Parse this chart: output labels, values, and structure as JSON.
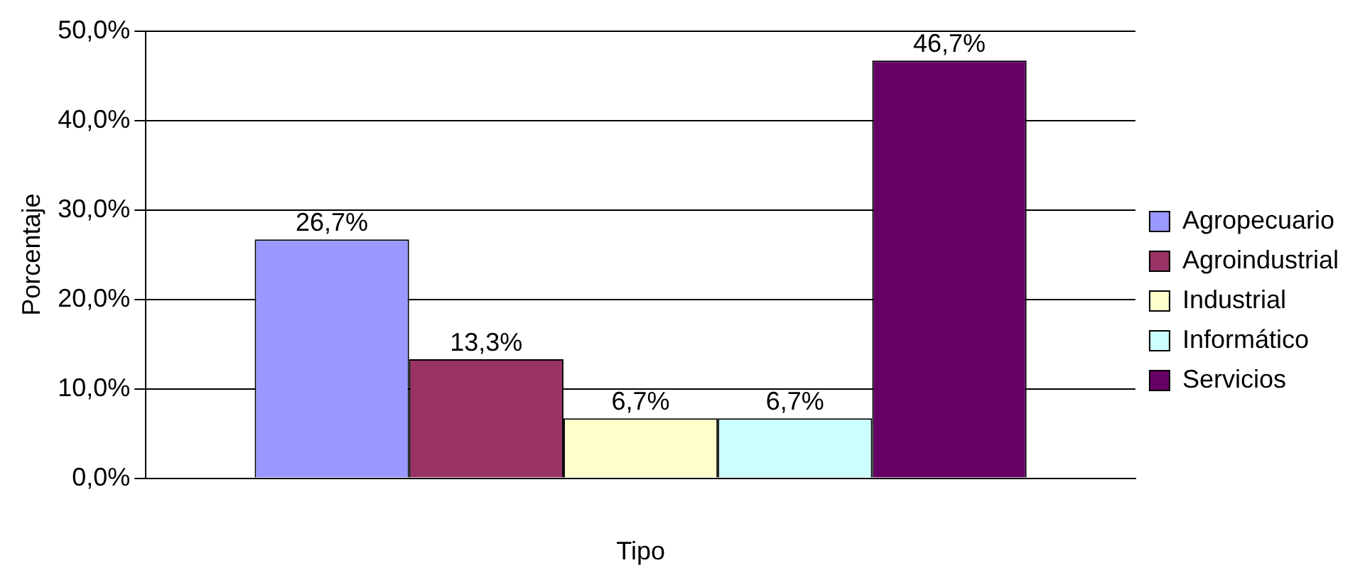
{
  "chart_data": {
    "type": "bar",
    "xlabel": "Tipo",
    "ylabel": "Porcentaje",
    "categories": [
      null
    ],
    "series": [
      {
        "name": "Agropecuario",
        "color": "#9999ff",
        "values": [
          26.7
        ],
        "value_labels": [
          "26,7%"
        ]
      },
      {
        "name": "Agroindustrial",
        "color": "#993366",
        "values": [
          13.3
        ],
        "value_labels": [
          "13,3%"
        ]
      },
      {
        "name": "Industrial",
        "color": "#ffffcc",
        "values": [
          6.7
        ],
        "value_labels": [
          "6,7%"
        ]
      },
      {
        "name": "Informático",
        "color": "#ccffff",
        "values": [
          6.7
        ],
        "value_labels": [
          "6,7%"
        ]
      },
      {
        "name": "Servicios",
        "color": "#660066",
        "values": [
          46.7
        ],
        "value_labels": [
          "46,7%"
        ]
      }
    ],
    "ylim": [
      0,
      50
    ],
    "yticks": [
      {
        "value": 0,
        "label": "0,0%"
      },
      {
        "value": 10,
        "label": "10,0%"
      },
      {
        "value": 20,
        "label": "20,0%"
      },
      {
        "value": 30,
        "label": "30,0%"
      },
      {
        "value": 40,
        "label": "40,0%"
      },
      {
        "value": 50,
        "label": "50,0%"
      }
    ],
    "grid": "y",
    "legend": "right"
  }
}
